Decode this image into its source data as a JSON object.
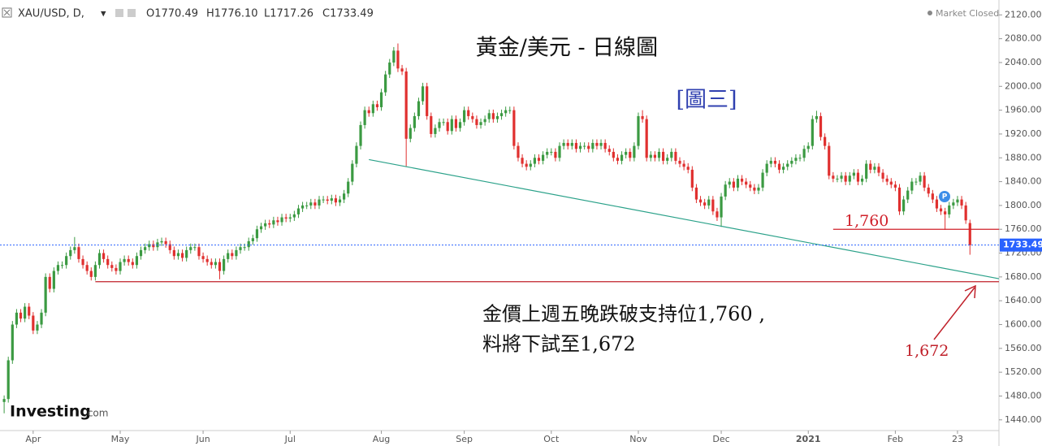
{
  "chart_data": {
    "type": "candlestick",
    "header": {
      "symbol": "XAU/USD, D,",
      "open": "O1770.49",
      "high": "H1776.10",
      "low": "L1717.26",
      "close": "C1733.49",
      "status": "Market Closed",
      "brand": "Investing",
      "brand_suffix": ".com"
    },
    "title": "黃金/美元 - 日線圖",
    "subtitle": "[圖三]",
    "annotation_lines": [
      "金價上週五晚跌破支持位1,760 ,",
      "料將下試至1,672"
    ],
    "up_color": "#3b9a42",
    "down_color": "#e0302f",
    "open": [
      1470,
      1475,
      1540,
      1600,
      1620,
      1610,
      1630,
      1615,
      1590,
      1600,
      1620,
      1680,
      1660,
      1690,
      1700,
      1700,
      1715,
      1725,
      1730,
      1710,
      1700,
      1690,
      1680,
      1700,
      1720,
      1710,
      1700,
      1695,
      1690,
      1705,
      1710,
      1705,
      1700,
      1715,
      1725,
      1730,
      1735,
      1730,
      1738,
      1740,
      1735,
      1725,
      1715,
      1720,
      1712,
      1725,
      1730,
      1730,
      1715,
      1710,
      1705,
      1700,
      1705,
      1690,
      1710,
      1720,
      1715,
      1725,
      1730,
      1730,
      1740,
      1745,
      1760,
      1765,
      1770,
      1768,
      1775,
      1772,
      1780,
      1778,
      1780,
      1785,
      1795,
      1800,
      1800,
      1805,
      1800,
      1810,
      1810,
      1808,
      1812,
      1805,
      1810,
      1820,
      1840,
      1870,
      1900,
      1935,
      1960,
      1955,
      1970,
      1965,
      1990,
      2020,
      2040,
      2060,
      2030,
      2025,
      1912,
      1930,
      1950,
      1975,
      2000,
      1950,
      1920,
      1930,
      1940,
      1940,
      1925,
      1945,
      1930,
      1940,
      1960,
      1950,
      1945,
      1935,
      1940,
      1945,
      1955,
      1945,
      1950,
      1955,
      1960,
      1960,
      1900,
      1880,
      1870,
      1865,
      1870,
      1880,
      1875,
      1885,
      1890,
      1890,
      1880,
      1900,
      1905,
      1900,
      1905,
      1895,
      1900,
      1900,
      1895,
      1905,
      1900,
      1905,
      1895,
      1890,
      1880,
      1875,
      1885,
      1890,
      1880,
      1900,
      1950,
      1945,
      1880,
      1885,
      1880,
      1890,
      1875,
      1880,
      1890,
      1875,
      1870,
      1865,
      1860,
      1830,
      1810,
      1805,
      1800,
      1810,
      1790,
      1780,
      1815,
      1835,
      1840,
      1830,
      1845,
      1840,
      1835,
      1830,
      1825,
      1830,
      1855,
      1870,
      1875,
      1870,
      1860,
      1865,
      1870,
      1875,
      1880,
      1880,
      1895,
      1900,
      1945,
      1950,
      1915,
      1900,
      1850,
      1845,
      1845,
      1850,
      1840,
      1850,
      1855,
      1840,
      1845,
      1870,
      1860,
      1865,
      1855,
      1845,
      1840,
      1835,
      1830,
      1790,
      1810,
      1825,
      1840,
      1840,
      1850,
      1830,
      1820,
      1810,
      1795,
      1790,
      1785,
      1800,
      1805,
      1810,
      1800,
      1770.49
    ],
    "high": [
      1481,
      1546,
      1606,
      1626,
      1626,
      1636,
      1636,
      1621,
      1606,
      1626,
      1686,
      1686,
      1696,
      1706,
      1706,
      1721,
      1731,
      1747,
      1736,
      1716,
      1706,
      1696,
      1706,
      1726,
      1726,
      1716,
      1706,
      1701,
      1711,
      1716,
      1716,
      1711,
      1721,
      1731,
      1736,
      1741,
      1741,
      1744,
      1746,
      1746,
      1741,
      1731,
      1726,
      1726,
      1731,
      1736,
      1736,
      1736,
      1721,
      1716,
      1711,
      1711,
      1711,
      1716,
      1726,
      1726,
      1731,
      1736,
      1736,
      1746,
      1751,
      1766,
      1771,
      1776,
      1776,
      1781,
      1781,
      1786,
      1786,
      1786,
      1791,
      1801,
      1806,
      1806,
      1811,
      1811,
      1816,
      1816,
      1816,
      1818,
      1818,
      1816,
      1826,
      1846,
      1876,
      1906,
      1941,
      1966,
      1966,
      1976,
      1976,
      1996,
      2026,
      2046,
      2066,
      2072,
      2036,
      2031,
      1936,
      1956,
      1981,
      2006,
      2006,
      1956,
      1936,
      1946,
      1946,
      1946,
      1951,
      1951,
      1946,
      1966,
      1966,
      1956,
      1951,
      1946,
      1951,
      1961,
      1961,
      1956,
      1961,
      1966,
      1966,
      1966,
      1906,
      1886,
      1876,
      1876,
      1886,
      1886,
      1891,
      1896,
      1896,
      1896,
      1906,
      1911,
      1911,
      1911,
      1911,
      1906,
      1906,
      1906,
      1911,
      1911,
      1911,
      1911,
      1901,
      1896,
      1886,
      1891,
      1896,
      1896,
      1906,
      1956,
      1960,
      1951,
      1891,
      1891,
      1896,
      1896,
      1886,
      1896,
      1896,
      1881,
      1876,
      1871,
      1866,
      1836,
      1816,
      1811,
      1816,
      1816,
      1796,
      1821,
      1841,
      1846,
      1846,
      1851,
      1851,
      1846,
      1841,
      1836,
      1836,
      1861,
      1876,
      1881,
      1881,
      1876,
      1871,
      1876,
      1881,
      1886,
      1886,
      1901,
      1906,
      1951,
      1959,
      1956,
      1921,
      1906,
      1856,
      1851,
      1856,
      1856,
      1856,
      1861,
      1861,
      1851,
      1876,
      1876,
      1871,
      1871,
      1861,
      1851,
      1846,
      1841,
      1836,
      1816,
      1831,
      1846,
      1846,
      1856,
      1856,
      1836,
      1826,
      1816,
      1801,
      1796,
      1806,
      1811,
      1816,
      1816,
      1806,
      1776.1
    ],
    "low": [
      1451,
      1469,
      1534,
      1594,
      1604,
      1604,
      1609,
      1584,
      1584,
      1594,
      1614,
      1654,
      1654,
      1684,
      1694,
      1694,
      1709,
      1719,
      1704,
      1694,
      1684,
      1674,
      1674,
      1694,
      1704,
      1694,
      1689,
      1684,
      1684,
      1699,
      1699,
      1694,
      1694,
      1709,
      1719,
      1724,
      1724,
      1724,
      1732,
      1729,
      1719,
      1709,
      1709,
      1706,
      1706,
      1719,
      1724,
      1709,
      1704,
      1699,
      1694,
      1694,
      1676,
      1684,
      1704,
      1709,
      1709,
      1719,
      1724,
      1724,
      1734,
      1739,
      1754,
      1759,
      1762,
      1762,
      1766,
      1766,
      1772,
      1772,
      1774,
      1779,
      1789,
      1794,
      1794,
      1794,
      1794,
      1804,
      1802,
      1802,
      1799,
      1799,
      1804,
      1814,
      1834,
      1864,
      1894,
      1929,
      1949,
      1949,
      1959,
      1959,
      1984,
      2014,
      2034,
      2024,
      2019,
      1866,
      1906,
      1924,
      1944,
      1969,
      1944,
      1914,
      1914,
      1924,
      1934,
      1919,
      1919,
      1924,
      1924,
      1934,
      1944,
      1939,
      1929,
      1929,
      1934,
      1939,
      1939,
      1939,
      1944,
      1949,
      1954,
      1894,
      1874,
      1864,
      1859,
      1859,
      1864,
      1869,
      1869,
      1879,
      1884,
      1874,
      1874,
      1894,
      1894,
      1894,
      1889,
      1889,
      1894,
      1889,
      1889,
      1894,
      1894,
      1889,
      1884,
      1874,
      1869,
      1869,
      1879,
      1874,
      1874,
      1894,
      1939,
      1874,
      1874,
      1874,
      1874,
      1869,
      1869,
      1874,
      1869,
      1864,
      1859,
      1854,
      1824,
      1804,
      1799,
      1794,
      1794,
      1784,
      1774,
      1764,
      1809,
      1829,
      1824,
      1824,
      1834,
      1829,
      1824,
      1819,
      1819,
      1824,
      1849,
      1864,
      1864,
      1854,
      1854,
      1859,
      1864,
      1869,
      1874,
      1874,
      1889,
      1894,
      1939,
      1909,
      1894,
      1844,
      1839,
      1839,
      1839,
      1834,
      1834,
      1844,
      1834,
      1834,
      1839,
      1854,
      1854,
      1849,
      1839,
      1834,
      1829,
      1824,
      1784,
      1784,
      1804,
      1819,
      1834,
      1834,
      1824,
      1814,
      1804,
      1789,
      1784,
      1759,
      1779,
      1794,
      1799,
      1794,
      1769,
      1717.26
    ],
    "close": [
      1475,
      1540,
      1600,
      1620,
      1610,
      1630,
      1615,
      1590,
      1600,
      1620,
      1680,
      1660,
      1690,
      1700,
      1700,
      1715,
      1725,
      1730,
      1710,
      1700,
      1690,
      1680,
      1700,
      1720,
      1710,
      1700,
      1695,
      1690,
      1705,
      1710,
      1705,
      1700,
      1715,
      1725,
      1730,
      1735,
      1730,
      1738,
      1740,
      1735,
      1725,
      1715,
      1720,
      1712,
      1725,
      1730,
      1730,
      1715,
      1710,
      1705,
      1700,
      1705,
      1690,
      1710,
      1720,
      1715,
      1725,
      1730,
      1730,
      1740,
      1745,
      1760,
      1765,
      1770,
      1768,
      1775,
      1772,
      1780,
      1778,
      1780,
      1785,
      1795,
      1800,
      1800,
      1805,
      1800,
      1810,
      1810,
      1808,
      1812,
      1805,
      1810,
      1820,
      1840,
      1870,
      1900,
      1935,
      1960,
      1955,
      1970,
      1965,
      1990,
      2020,
      2040,
      2060,
      2030,
      2025,
      1912,
      1930,
      1950,
      1975,
      2000,
      1950,
      1920,
      1930,
      1940,
      1940,
      1925,
      1945,
      1930,
      1940,
      1960,
      1950,
      1945,
      1935,
      1940,
      1945,
      1955,
      1945,
      1950,
      1955,
      1960,
      1960,
      1900,
      1880,
      1870,
      1865,
      1870,
      1880,
      1875,
      1885,
      1890,
      1890,
      1880,
      1900,
      1905,
      1900,
      1905,
      1895,
      1900,
      1900,
      1895,
      1905,
      1900,
      1905,
      1895,
      1890,
      1880,
      1875,
      1885,
      1890,
      1880,
      1900,
      1950,
      1945,
      1880,
      1885,
      1880,
      1890,
      1875,
      1880,
      1890,
      1875,
      1870,
      1865,
      1860,
      1830,
      1810,
      1805,
      1800,
      1810,
      1790,
      1780,
      1815,
      1835,
      1840,
      1830,
      1845,
      1840,
      1835,
      1830,
      1825,
      1830,
      1855,
      1870,
      1875,
      1870,
      1860,
      1865,
      1870,
      1875,
      1880,
      1880,
      1895,
      1900,
      1945,
      1950,
      1915,
      1900,
      1850,
      1845,
      1845,
      1850,
      1840,
      1850,
      1855,
      1840,
      1845,
      1870,
      1860,
      1865,
      1855,
      1845,
      1840,
      1835,
      1830,
      1790,
      1810,
      1825,
      1840,
      1840,
      1850,
      1830,
      1820,
      1810,
      1795,
      1790,
      1785,
      1800,
      1805,
      1810,
      1800,
      1775,
      1733.49
    ],
    "last_price_color": "#2962ff",
    "xlim": [
      -1,
      240
    ],
    "xticks": [
      {
        "value": 7,
        "label": "Apr"
      },
      {
        "value": 28,
        "label": "May"
      },
      {
        "value": 48,
        "label": "Jun"
      },
      {
        "value": 69,
        "label": "Jul"
      },
      {
        "value": 91,
        "label": "Aug"
      },
      {
        "value": 111,
        "label": "Sep"
      },
      {
        "value": 132,
        "label": "Oct"
      },
      {
        "value": 153,
        "label": "Nov"
      },
      {
        "value": 173,
        "label": "Dec"
      },
      {
        "value": 194,
        "label": "2021"
      },
      {
        "value": 215,
        "label": "Feb"
      },
      {
        "value": 230,
        "label": "23"
      }
    ],
    "ylim": [
      1422,
      2145
    ],
    "yticks": [
      {
        "value": 1440,
        "label": "1440.00"
      },
      {
        "value": 1480,
        "label": "1480.00"
      },
      {
        "value": 1520,
        "label": "1520.00"
      },
      {
        "value": 1560,
        "label": "1560.00"
      },
      {
        "value": 1600,
        "label": "1600.00"
      },
      {
        "value": 1640,
        "label": "1640.00"
      },
      {
        "value": 1680,
        "label": "1680.00"
      },
      {
        "value": 1720,
        "label": "1720.00"
      },
      {
        "value": 1760,
        "label": "1760.00"
      },
      {
        "value": 1800,
        "label": "1800.00"
      },
      {
        "value": 1840,
        "label": "1840.00"
      },
      {
        "value": 1880,
        "label": "1880.00"
      },
      {
        "value": 1920,
        "label": "1920.00"
      },
      {
        "value": 1960,
        "label": "1960.00"
      },
      {
        "value": 2000,
        "label": "2000.00"
      },
      {
        "value": 2040,
        "label": "2040.00"
      },
      {
        "value": 2080,
        "label": "2080.00"
      },
      {
        "value": 2120,
        "label": "2120.00"
      }
    ],
    "grid": false,
    "hlines": [
      {
        "value": 1760,
        "label": "1,760",
        "from": 200,
        "color": "#d0202a"
      },
      {
        "value": 1672,
        "label": "1,672",
        "from": 22,
        "color": "#c0202a"
      }
    ],
    "trendline": {
      "x": [
        88,
        240
      ],
      "y": [
        1877,
        1677
      ],
      "color": "#2aa189"
    }
  }
}
